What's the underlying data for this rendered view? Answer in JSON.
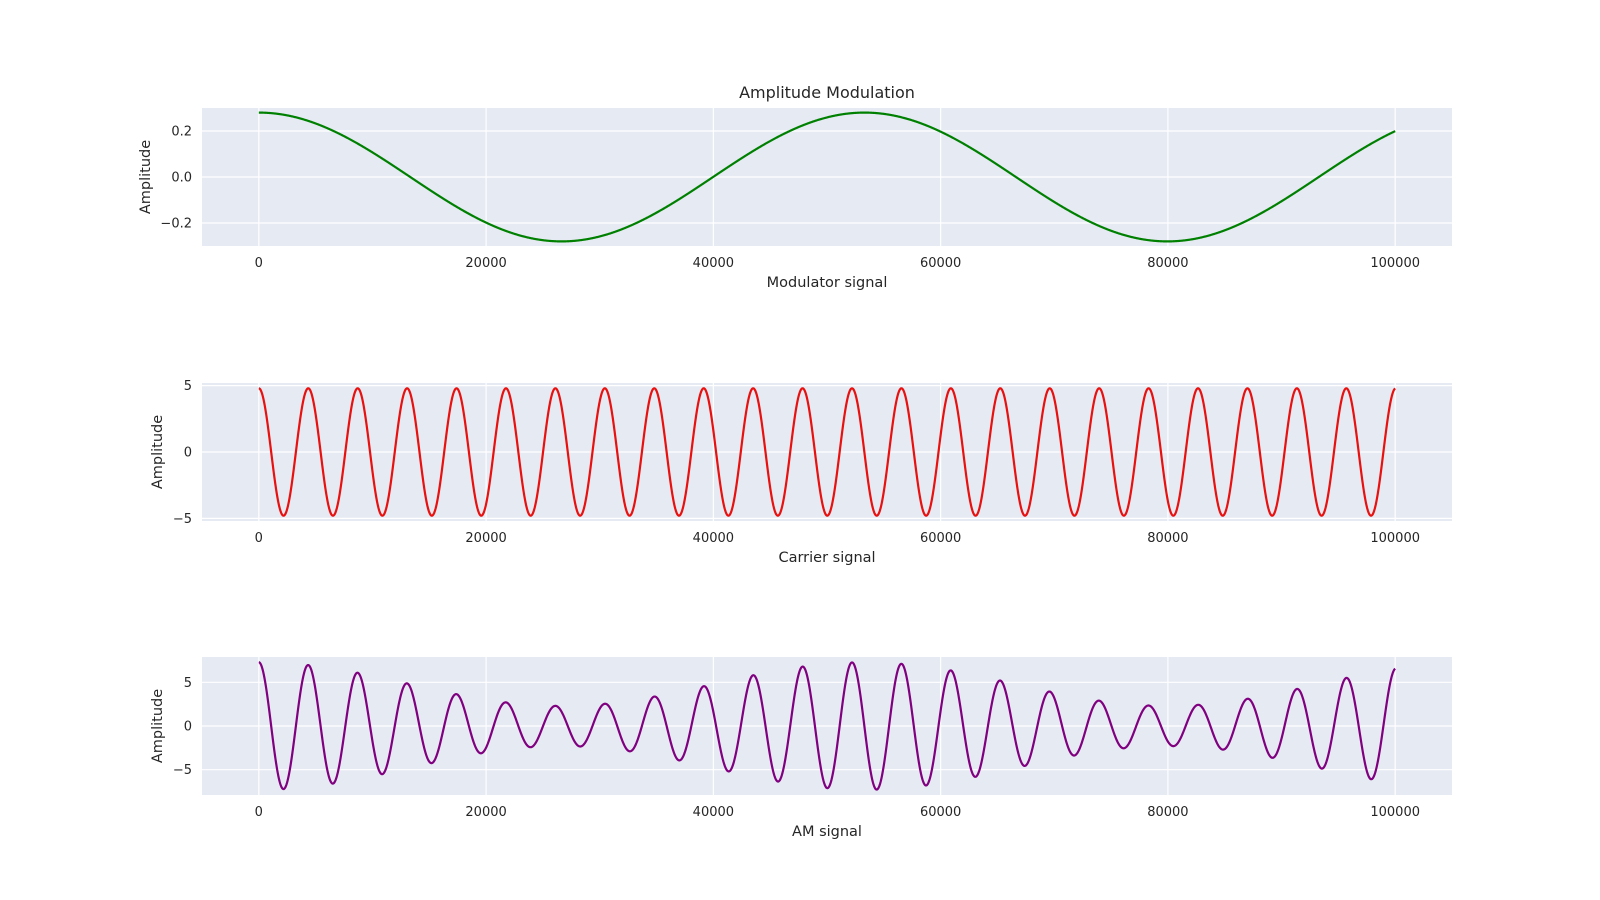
{
  "chart_data": [
    {
      "type": "line",
      "title": "Amplitude Modulation",
      "xlabel": "Modulator signal",
      "ylabel": "Amplitude",
      "xlim": [
        -5000,
        105000
      ],
      "ylim": [
        -0.3,
        0.3
      ],
      "x_ticks": [
        0,
        20000,
        40000,
        60000,
        80000,
        100000
      ],
      "x_tick_labels": [
        "0",
        "20000",
        "40000",
        "60000",
        "80000",
        "100000"
      ],
      "y_ticks": [
        0.2,
        0.0,
        -0.2
      ],
      "y_tick_labels": [
        "0.2",
        "0.0",
        "−0.2"
      ],
      "grid": true,
      "series": [
        {
          "color": "#008000",
          "kind": "cosine",
          "amplitude": 0.28,
          "period": 53300,
          "x_start": 0,
          "x_end": 100000
        }
      ]
    },
    {
      "type": "line",
      "title": "",
      "xlabel": "Carrier signal",
      "ylabel": "Amplitude",
      "xlim": [
        -5000,
        105000
      ],
      "ylim": [
        -5.2,
        5.2
      ],
      "x_ticks": [
        0,
        20000,
        40000,
        60000,
        80000,
        100000
      ],
      "x_tick_labels": [
        "0",
        "20000",
        "40000",
        "60000",
        "80000",
        "100000"
      ],
      "y_ticks": [
        5,
        0,
        -5
      ],
      "y_tick_labels": [
        "5",
        "0",
        "−5"
      ],
      "grid": true,
      "series": [
        {
          "color": "#e8110f",
          "kind": "cosine",
          "amplitude": 4.8,
          "period": 4350,
          "x_start": 0,
          "x_end": 100000
        }
      ]
    },
    {
      "type": "line",
      "title": "",
      "xlabel": "AM signal",
      "ylabel": "Amplitude",
      "xlim": [
        -5000,
        105000
      ],
      "ylim": [
        -7.9,
        7.9
      ],
      "x_ticks": [
        0,
        20000,
        40000,
        60000,
        80000,
        100000
      ],
      "x_tick_labels": [
        "0",
        "20000",
        "40000",
        "60000",
        "80000",
        "100000"
      ],
      "y_ticks": [
        5,
        0,
        -5
      ],
      "y_tick_labels": [
        "5",
        "0",
        "−5"
      ],
      "grid": true,
      "series": [
        {
          "color": "#800080",
          "kind": "am",
          "carrier_amplitude": 4.8,
          "carrier_period": 4350,
          "modulation_amplitude": 2.5,
          "modulation_period": 53300,
          "x_start": 0,
          "x_end": 100000
        }
      ]
    }
  ]
}
